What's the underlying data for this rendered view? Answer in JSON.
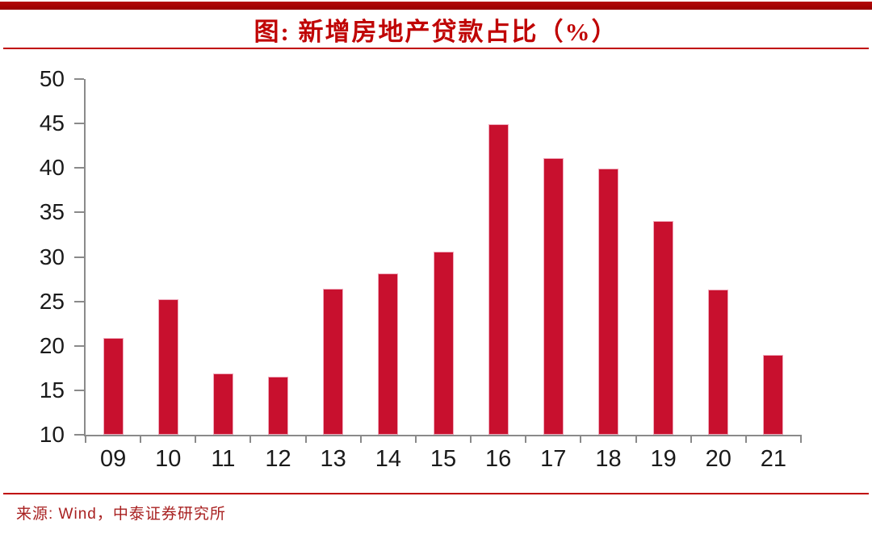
{
  "header": {
    "title": "图: 新增房地产贷款占比（%）"
  },
  "footer": {
    "source": "来源: Wind，中泰证券研究所"
  },
  "colors": {
    "bar": "#c8102e",
    "bar_edge": "#f0a9bb",
    "banner_red": "#a30000",
    "rule_red": "#c00000",
    "title_red": "#c00505",
    "source_red": "#a82020",
    "axis_gray": "#8a8a8a",
    "tick_label_black": "#1a1a1a"
  },
  "chart_data": {
    "type": "bar",
    "title": "图: 新增房地产贷款占比（%）",
    "categories": [
      "09",
      "10",
      "11",
      "12",
      "13",
      "14",
      "15",
      "16",
      "17",
      "18",
      "19",
      "20",
      "21"
    ],
    "values": [
      20.9,
      25.2,
      16.9,
      16.5,
      26.4,
      28.1,
      30.6,
      44.9,
      41.1,
      39.9,
      34.0,
      26.3,
      19.0
    ],
    "xlabel": "",
    "ylabel": "",
    "ylim": [
      10,
      50
    ],
    "yticks": [
      10,
      15,
      20,
      25,
      30,
      35,
      40,
      45,
      50
    ],
    "grid": false,
    "legend": "none",
    "bar_color": "#c8102e",
    "source": "来源: Wind，中泰证券研究所"
  }
}
